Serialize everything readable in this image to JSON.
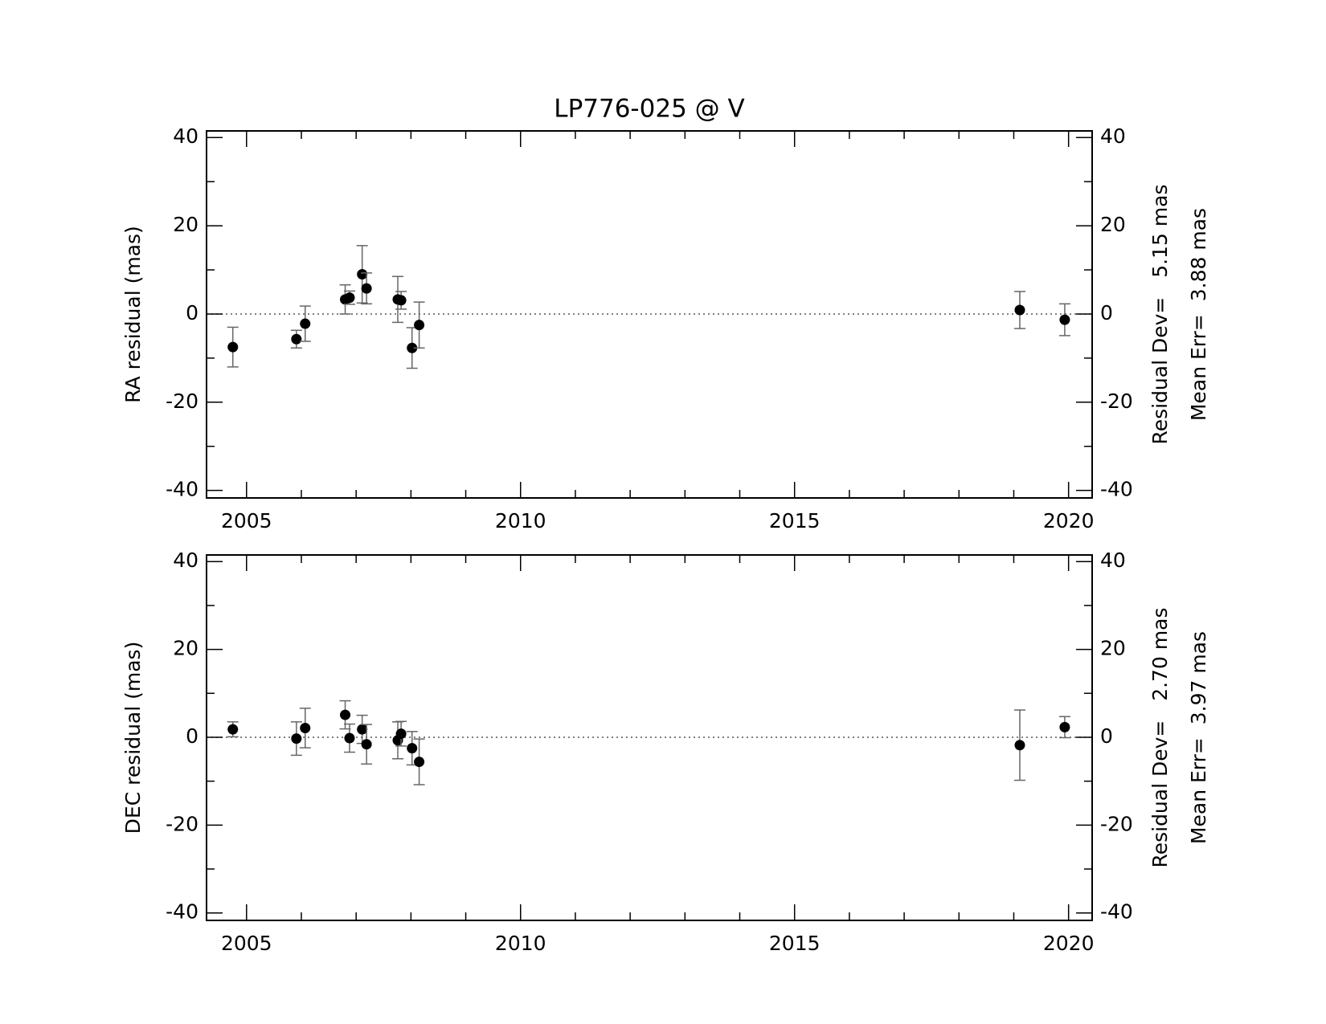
{
  "chart_data": [
    {
      "type": "scatter",
      "title": "LP776-025 @ V",
      "y_label": "RA residual (mas)",
      "x": [
        2004.75,
        2005.91,
        2006.07,
        2006.8,
        2006.88,
        2007.11,
        2007.19,
        2007.76,
        2007.82,
        2008.02,
        2008.15,
        2019.11,
        2019.93
      ],
      "series": [
        {
          "color": "#000000",
          "values": [
            -7.5,
            -5.7,
            -2.2,
            3.3,
            3.7,
            9.0,
            5.8,
            3.3,
            3.1,
            -7.7,
            -2.5,
            0.9,
            -1.3
          ],
          "errors": [
            4.5,
            2.0,
            4.0,
            3.3,
            1.5,
            6.5,
            3.5,
            5.2,
            2.0,
            4.6,
            5.2,
            4.2,
            3.6
          ],
          "error_color": "#666666"
        }
      ],
      "xlim": [
        2004.27,
        2020.43
      ],
      "xticks": [
        2005,
        2010,
        2015,
        2020
      ],
      "xminorticks": [
        2006,
        2007,
        2008,
        2009,
        2011,
        2012,
        2013,
        2014,
        2016,
        2017,
        2018,
        2019
      ],
      "ylim": [
        -41.7,
        41.5
      ],
      "yticks": [
        -40,
        -20,
        0,
        20,
        40
      ],
      "yminorticks": [
        -30,
        -10,
        10,
        30
      ],
      "y2lim": [
        -41.7,
        41.5
      ],
      "y2ticks": [
        -40,
        -20,
        0,
        20,
        40
      ],
      "reference_line": 0,
      "annotations": [
        "Residual Dev=   5.15 mas",
        "Mean Err=  3.88 mas"
      ]
    },
    {
      "type": "scatter",
      "y_label": "DEC residual (mas)",
      "x": [
        2004.75,
        2005.91,
        2006.07,
        2006.8,
        2006.88,
        2007.11,
        2007.19,
        2007.76,
        2007.82,
        2008.02,
        2008.15,
        2019.11,
        2019.93
      ],
      "series": [
        {
          "color": "#000000",
          "values": [
            1.8,
            -0.3,
            2.1,
            5.1,
            -0.2,
            1.8,
            -1.6,
            -0.7,
            0.8,
            -2.5,
            -5.6,
            -1.8,
            2.3
          ],
          "errors": [
            1.7,
            3.8,
            4.5,
            3.2,
            3.2,
            3.2,
            4.5,
            4.2,
            2.8,
            3.8,
            5.2,
            8.0,
            2.4
          ],
          "error_color": "#666666"
        }
      ],
      "xlim": [
        2004.27,
        2020.43
      ],
      "xticks": [
        2005,
        2010,
        2015,
        2020
      ],
      "xminorticks": [
        2006,
        2007,
        2008,
        2009,
        2011,
        2012,
        2013,
        2014,
        2016,
        2017,
        2018,
        2019
      ],
      "ylim": [
        -41.7,
        41.5
      ],
      "yticks": [
        -40,
        -20,
        0,
        20,
        40
      ],
      "yminorticks": [
        -30,
        -10,
        10,
        30
      ],
      "y2lim": [
        -41.7,
        41.5
      ],
      "y2ticks": [
        -40,
        -20,
        0,
        20,
        40
      ],
      "reference_line": 0,
      "annotations": [
        "Residual Dev=   2.70 mas",
        "Mean Err=  3.97 mas"
      ]
    }
  ]
}
